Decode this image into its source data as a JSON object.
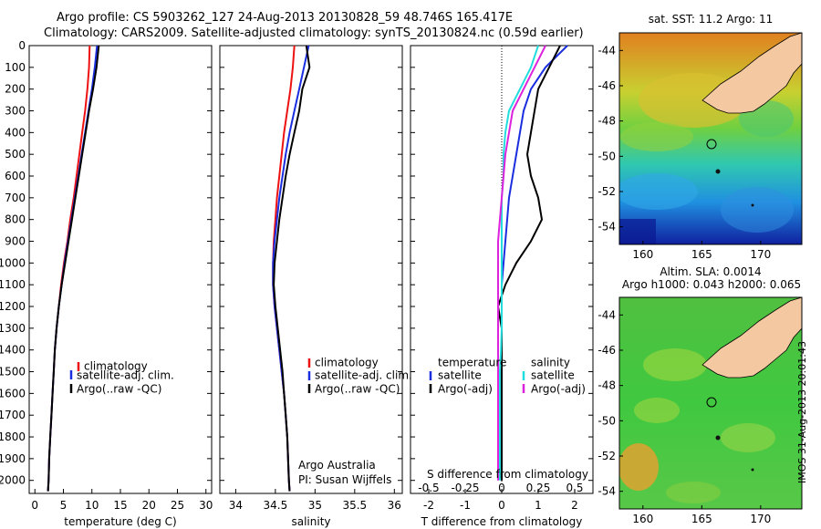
{
  "header": {
    "title": "Argo profile: CS 5903262_127 24-Aug-2013 20130828_59 48.746S 165.417E",
    "subtitle": "Climatology: CARS2009. Satellite-adjusted climatology: synTS_20130824.nc (0.59d earlier)"
  },
  "colors": {
    "climatology": "#ee1111",
    "satellite": "#1a2ee0",
    "argo": "#000000",
    "sat_s": "#22dddd",
    "argo_s": "#dd22dd"
  },
  "chart_data": [
    {
      "type": "line",
      "xlabel": "temperature (deg C)",
      "ylabel": "",
      "xlim": [
        -1,
        31
      ],
      "ylim": [
        2060,
        0
      ],
      "xticks": [
        "0",
        "5",
        "10",
        "15",
        "20",
        "25",
        "30"
      ],
      "xtick_values": [
        0,
        5,
        10,
        15,
        20,
        25,
        30
      ],
      "yticks": [
        "0",
        "100",
        "200",
        "300",
        "400",
        "500",
        "600",
        "700",
        "800",
        "900",
        "1000",
        "1100",
        "1200",
        "1300",
        "1400",
        "1500",
        "1600",
        "1700",
        "1800",
        "1900",
        "2000"
      ],
      "ytick_values": [
        0,
        100,
        200,
        300,
        400,
        500,
        600,
        700,
        800,
        900,
        1000,
        1100,
        1200,
        1300,
        1400,
        1500,
        1600,
        1700,
        1800,
        1900,
        2000
      ],
      "legend": [
        "climatology",
        "satellite-adj. clim.",
        "Argo(..raw -QC)"
      ],
      "series": [
        {
          "name": "climatology",
          "color": "#ee1111",
          "x": [
            9.6,
            9.5,
            9.2,
            8.8,
            8.3,
            7.8,
            7.3,
            6.8,
            6.2,
            5.7,
            5.1,
            4.6,
            4.2,
            3.8,
            3.5,
            3.3,
            3.1,
            2.9,
            2.7,
            2.5,
            2.4,
            2.3
          ],
          "y": [
            0,
            100,
            200,
            300,
            400,
            500,
            600,
            700,
            800,
            900,
            1000,
            1100,
            1200,
            1300,
            1400,
            1500,
            1600,
            1700,
            1800,
            1900,
            2000,
            2050
          ]
        },
        {
          "name": "satellite-adj. clim.",
          "color": "#1a2ee0",
          "x": [
            10.9,
            10.5,
            10.0,
            9.4,
            8.8,
            8.2,
            7.6,
            7.0,
            6.4,
            5.8,
            5.2,
            4.7,
            4.2,
            3.8,
            3.5,
            3.3,
            3.1,
            2.9,
            2.7,
            2.5,
            2.4,
            2.3
          ],
          "y": [
            0,
            100,
            200,
            300,
            400,
            500,
            600,
            700,
            800,
            900,
            1000,
            1100,
            1200,
            1300,
            1400,
            1500,
            1600,
            1700,
            1800,
            1900,
            2000,
            2050
          ]
        },
        {
          "name": "Argo(..raw -QC)",
          "color": "#000000",
          "x": [
            11.2,
            10.8,
            10.2,
            9.5,
            8.9,
            8.3,
            7.7,
            7.1,
            6.5,
            5.9,
            5.3,
            4.7,
            4.2,
            3.8,
            3.5,
            3.3,
            3.1,
            2.9,
            2.7,
            2.5,
            2.4,
            2.3
          ],
          "y": [
            0,
            100,
            200,
            300,
            400,
            500,
            600,
            700,
            800,
            900,
            1000,
            1100,
            1200,
            1300,
            1400,
            1500,
            1600,
            1700,
            1800,
            1900,
            2000,
            2050
          ]
        }
      ]
    },
    {
      "type": "line",
      "xlabel": "salinity",
      "xlim": [
        33.8,
        36.1
      ],
      "ylim": [
        2060,
        0
      ],
      "xticks": [
        "34",
        "34.5",
        "35",
        "35.5",
        "36"
      ],
      "xtick_values": [
        34,
        34.5,
        35,
        35.5,
        36
      ],
      "legend": [
        "climatology",
        "satellite-adj. clim.",
        "Argo(..raw -QC)"
      ],
      "note1": "Argo Australia",
      "note2": "PI: Susan Wijffels",
      "series": [
        {
          "name": "climatology",
          "color": "#ee1111",
          "x": [
            34.74,
            34.72,
            34.69,
            34.65,
            34.61,
            34.58,
            34.55,
            34.52,
            34.5,
            34.48,
            34.47,
            34.47,
            34.49,
            34.52,
            34.55,
            34.58,
            34.61,
            34.63,
            34.65,
            34.66,
            34.67,
            34.68
          ],
          "y": [
            0,
            100,
            200,
            300,
            400,
            500,
            600,
            700,
            800,
            900,
            1000,
            1100,
            1200,
            1300,
            1400,
            1500,
            1600,
            1700,
            1800,
            1900,
            2000,
            2050
          ]
        },
        {
          "name": "satellite-adj. clim.",
          "color": "#1a2ee0",
          "x": [
            34.92,
            34.86,
            34.8,
            34.74,
            34.68,
            34.63,
            34.59,
            34.55,
            34.52,
            34.49,
            34.47,
            34.47,
            34.49,
            34.52,
            34.55,
            34.58,
            34.61,
            34.63,
            34.65,
            34.66,
            34.67,
            34.68
          ],
          "y": [
            0,
            100,
            200,
            300,
            400,
            500,
            600,
            700,
            800,
            900,
            1000,
            1100,
            1200,
            1300,
            1400,
            1500,
            1600,
            1700,
            1800,
            1900,
            2000,
            2050
          ]
        },
        {
          "name": "Argo(..raw -QC)",
          "color": "#000000",
          "x": [
            34.89,
            34.93,
            34.84,
            34.8,
            34.74,
            34.68,
            34.63,
            34.59,
            34.55,
            34.52,
            34.49,
            34.48,
            34.5,
            34.53,
            34.56,
            34.59,
            34.61,
            34.63,
            34.65,
            34.66,
            34.67,
            34.68
          ],
          "y": [
            0,
            100,
            200,
            300,
            400,
            500,
            600,
            700,
            800,
            900,
            1000,
            1100,
            1200,
            1300,
            1400,
            1500,
            1600,
            1700,
            1800,
            1900,
            2000,
            2050
          ]
        }
      ]
    },
    {
      "type": "line",
      "xlabel": "T difference from climatology",
      "xlabel_top": "S difference from climatology",
      "xlim": [
        -2.5,
        2.5
      ],
      "ylim": [
        2060,
        0
      ],
      "xticks": [
        "-2",
        "-1",
        "0",
        "1",
        "2"
      ],
      "xtick_values": [
        -2,
        -1,
        0,
        1,
        2
      ],
      "xticks_top": [
        "-0.5",
        "-0.25",
        "0",
        "0.25",
        "0.5"
      ],
      "xtick_top_values": [
        -2,
        -1,
        0,
        1,
        2
      ],
      "legend_left_title": "temperature",
      "legend_left": [
        "satellite",
        "Argo(-adj)"
      ],
      "legend_right_title": "salinity",
      "legend_right": [
        "satellite",
        "Argo(-adj)"
      ],
      "series": [
        {
          "name": "satellite",
          "color": "#1a2ee0",
          "x": [
            1.8,
            1.2,
            0.8,
            0.6,
            0.5,
            0.4,
            0.3,
            0.2,
            0.15,
            0.1,
            0.05,
            0.0,
            0.0,
            0.0,
            0.0,
            0.0,
            0.0,
            0.0,
            0.0,
            0.0,
            0.0
          ],
          "y": [
            0,
            100,
            200,
            300,
            400,
            500,
            600,
            700,
            800,
            900,
            1000,
            1100,
            1200,
            1300,
            1400,
            1500,
            1600,
            1700,
            1800,
            1900,
            2000
          ]
        },
        {
          "name": "Argo(-adj)",
          "color": "#000000",
          "x": [
            1.6,
            1.3,
            1.0,
            0.9,
            0.8,
            0.7,
            0.8,
            1.0,
            1.1,
            0.8,
            0.4,
            0.1,
            -0.1,
            0.0,
            0.0,
            0.0,
            0.0,
            0.0,
            0.0,
            0.0,
            0.0
          ],
          "y": [
            0,
            100,
            200,
            300,
            400,
            500,
            600,
            700,
            800,
            900,
            1000,
            1100,
            1200,
            1300,
            1400,
            1500,
            1600,
            1700,
            1800,
            1900,
            2000
          ]
        },
        {
          "name": "satellite",
          "color": "#22dddd",
          "x": [
            1.0,
            0.8,
            0.5,
            0.2,
            0.1,
            0.05,
            0.05,
            0.0,
            0.0,
            0.0,
            0.0,
            0.0,
            0.0,
            0.0,
            -0.02,
            -0.05,
            -0.05,
            -0.05,
            -0.05,
            -0.05,
            -0.05
          ],
          "y": [
            0,
            100,
            200,
            300,
            400,
            500,
            600,
            700,
            800,
            900,
            1000,
            1100,
            1200,
            1300,
            1400,
            1500,
            1600,
            1700,
            1800,
            1900,
            2000
          ]
        },
        {
          "name": "Argo(-adj)",
          "color": "#dd22dd",
          "x": [
            1.2,
            0.9,
            0.6,
            0.3,
            0.2,
            0.1,
            0.05,
            0.0,
            -0.05,
            -0.1,
            -0.1,
            -0.1,
            -0.1,
            -0.1,
            -0.1,
            -0.1,
            -0.1,
            -0.1,
            -0.1,
            -0.1,
            -0.1
          ],
          "y": [
            0,
            100,
            200,
            300,
            400,
            500,
            600,
            700,
            800,
            900,
            1000,
            1100,
            1200,
            1300,
            1400,
            1500,
            1600,
            1700,
            1800,
            1900,
            2000
          ]
        }
      ]
    }
  ],
  "maps": [
    {
      "title": "sat. SST: 11.2  Argo: 11",
      "xticks": [
        "160",
        "165",
        "170"
      ],
      "xtick_values": [
        160,
        165,
        170
      ],
      "yticks": [
        "-44",
        "-46",
        "-48",
        "-50",
        "-52",
        "-54"
      ],
      "ytick_values": [
        -44,
        -46,
        -48,
        -50,
        -52,
        -54
      ],
      "lon_range": [
        158,
        173.5
      ],
      "lat_range": [
        -55,
        -43
      ]
    },
    {
      "title_line1": "Altim. SLA: 0.0014",
      "title_line2": "Argo h1000: 0.043 h2000: 0.065",
      "xticks": [
        "160",
        "165",
        "170"
      ],
      "xtick_values": [
        160,
        165,
        170
      ],
      "yticks": [
        "-44",
        "-46",
        "-48",
        "-50",
        "-52",
        "-54"
      ],
      "ytick_values": [
        -44,
        -46,
        -48,
        -50,
        -52,
        -54
      ],
      "lon_range": [
        158,
        173.5
      ],
      "lat_range": [
        -55,
        -43
      ]
    }
  ],
  "argo_position": {
    "lon": 165.417,
    "lat": -48.746
  },
  "side_label": "IMOS 31-Aug-2013 20:01:43"
}
